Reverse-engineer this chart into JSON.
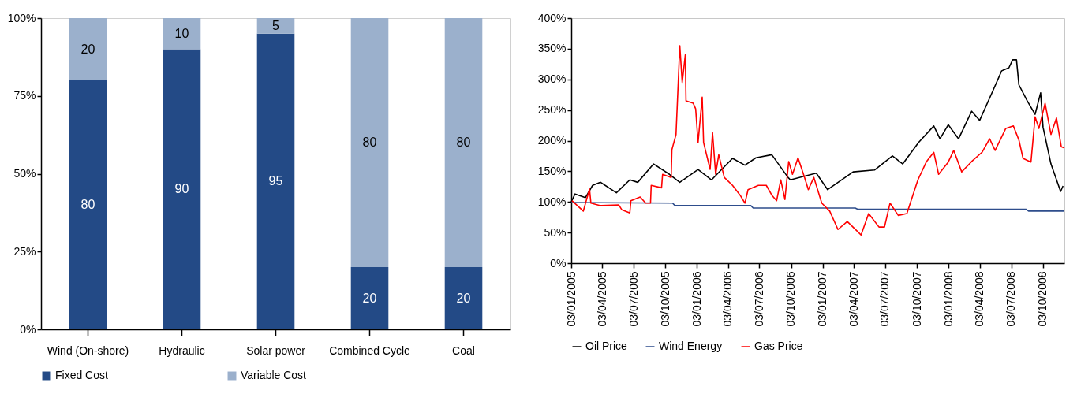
{
  "chart_data": [
    {
      "type": "bar",
      "stacked": true,
      "categories": [
        "Wind (On-shore)",
        "Hydraulic",
        "Solar power",
        "Combined Cycle",
        "Coal"
      ],
      "series": [
        {
          "name": "Fixed Cost",
          "color": "#234a86",
          "values": [
            80,
            90,
            95,
            20,
            20
          ]
        },
        {
          "name": "Variable Cost",
          "color": "#9bb0cc",
          "values": [
            20,
            10,
            5,
            80,
            80
          ]
        }
      ],
      "ylim": [
        0,
        100
      ],
      "yticks": [
        {
          "value": 0,
          "label": "0%"
        },
        {
          "value": 25,
          "label": "25%"
        },
        {
          "value": 50,
          "label": "50%"
        },
        {
          "value": 75,
          "label": "75%"
        },
        {
          "value": 100,
          "label": "100%"
        }
      ],
      "data_labels": true,
      "legend": "bottom"
    },
    {
      "type": "line",
      "series": [
        {
          "name": "Oil Price",
          "color": "#000000",
          "x": [
            "2005-01-03",
            "2005-01-14",
            "2005-02-13",
            "2005-03-06",
            "2005-03-29",
            "2005-05-14",
            "2005-06-22",
            "2005-07-15",
            "2005-08-30",
            "2005-10-15",
            "2005-11-14",
            "2006-01-06",
            "2006-02-14",
            "2006-04-16",
            "2006-05-22",
            "2006-06-23",
            "2006-08-08",
            "2006-09-24",
            "2006-10-01",
            "2006-12-15",
            "2007-01-17",
            "2007-04-01",
            "2007-06-02",
            "2007-07-24",
            "2007-08-23",
            "2007-10-08",
            "2007-11-21",
            "2007-12-09",
            "2008-01-02",
            "2008-02-01",
            "2008-03-10",
            "2008-04-02",
            "2008-05-11",
            "2008-06-05",
            "2008-06-26",
            "2008-07-07",
            "2008-07-18",
            "2008-07-25",
            "2008-08-18",
            "2008-09-10",
            "2008-09-26",
            "2008-10-03",
            "2008-10-26",
            "2008-11-23",
            "2008-11-30"
          ],
          "values": [
            100,
            113,
            107,
            127,
            132,
            115,
            136,
            132,
            162,
            145,
            132,
            153,
            136,
            171,
            160,
            172,
            177,
            140,
            136,
            147,
            120,
            149,
            152,
            175,
            162,
            197,
            224,
            203,
            226,
            203,
            248,
            233,
            282,
            314,
            319,
            332,
            332,
            291,
            265,
            243,
            278,
            222,
            162,
            117,
            126
          ]
        },
        {
          "name": "Wind Energy",
          "color": "#2e4d8c",
          "x": [
            "2005-01-03",
            "2005-10-24",
            "2005-10-31",
            "2006-06-08",
            "2006-06-15",
            "2007-04-07",
            "2007-04-14",
            "2008-08-15",
            "2008-08-22",
            "2008-12-04"
          ],
          "values": [
            99,
            98,
            94,
            94,
            90,
            90,
            88,
            88,
            85,
            85
          ]
        },
        {
          "name": "Gas Price",
          "color": "#ff0000",
          "x": [
            "2005-01-05",
            "2005-02-07",
            "2005-02-25",
            "2005-03-01",
            "2005-03-29",
            "2005-05-21",
            "2005-05-30",
            "2005-06-22",
            "2005-06-25",
            "2005-07-22",
            "2005-08-07",
            "2005-08-21",
            "2005-08-23",
            "2005-09-22",
            "2005-09-25",
            "2005-10-20",
            "2005-10-22",
            "2005-11-03",
            "2005-11-14",
            "2005-11-21",
            "2005-11-30",
            "2005-12-02",
            "2005-12-23",
            "2005-12-30",
            "2006-01-06",
            "2006-01-18",
            "2006-01-22",
            "2006-02-10",
            "2006-02-17",
            "2006-02-26",
            "2006-03-07",
            "2006-03-23",
            "2006-04-16",
            "2006-05-08",
            "2006-05-22",
            "2006-05-31",
            "2006-06-30",
            "2006-07-23",
            "2006-08-08",
            "2006-08-22",
            "2006-09-03",
            "2006-09-15",
            "2006-09-26",
            "2006-10-07",
            "2006-10-23",
            "2006-11-11",
            "2006-11-22",
            "2006-12-08",
            "2006-12-31",
            "2007-01-23",
            "2007-02-16",
            "2007-03-15",
            "2007-04-17",
            "2007-04-24",
            "2007-05-16",
            "2007-06-15",
            "2007-07-01",
            "2007-07-17",
            "2007-08-10",
            "2007-09-04",
            "2007-09-16",
            "2007-10-06",
            "2007-10-31",
            "2007-11-21",
            "2007-12-05",
            "2008-01-02",
            "2008-01-18",
            "2008-02-10",
            "2008-03-10",
            "2008-04-09",
            "2008-05-01",
            "2008-05-17",
            "2008-06-17",
            "2008-07-09",
            "2008-07-25",
            "2008-08-06",
            "2008-08-29",
            "2008-09-10",
            "2008-09-21",
            "2008-10-09",
            "2008-10-26",
            "2008-11-11",
            "2008-11-25",
            "2008-12-04"
          ],
          "values": [
            102,
            85,
            121,
            98,
            94,
            95,
            87,
            82,
            102,
            108,
            98,
            98,
            127,
            123,
            145,
            140,
            185,
            210,
            355,
            295,
            340,
            265,
            261,
            252,
            197,
            271,
            197,
            153,
            213,
            145,
            177,
            140,
            127,
            111,
            98,
            120,
            127,
            127,
            111,
            102,
            136,
            104,
            166,
            145,
            172,
            140,
            120,
            140,
            98,
            85,
            55,
            68,
            50,
            46,
            81,
            59,
            59,
            98,
            78,
            81,
            102,
            136,
            166,
            181,
            145,
            165,
            184,
            149,
            166,
            181,
            203,
            184,
            220,
            224,
            201,
            171,
            165,
            239,
            220,
            261,
            210,
            237,
            190,
            188
          ]
        }
      ],
      "xlim": [
        "2005-01-03",
        "2008-12-04"
      ],
      "xticks": [
        {
          "value": "2005-01-03",
          "label": "03/01/2005"
        },
        {
          "value": "2005-04-03",
          "label": "03/04/2005"
        },
        {
          "value": "2005-07-03",
          "label": "03/07/2005"
        },
        {
          "value": "2005-10-03",
          "label": "03/10/2005"
        },
        {
          "value": "2006-01-03",
          "label": "03/01/2006"
        },
        {
          "value": "2006-04-03",
          "label": "03/04/2006"
        },
        {
          "value": "2006-07-03",
          "label": "03/07/2006"
        },
        {
          "value": "2006-10-03",
          "label": "03/10/2006"
        },
        {
          "value": "2007-01-03",
          "label": "03/01/2007"
        },
        {
          "value": "2007-04-03",
          "label": "03/04/2007"
        },
        {
          "value": "2007-07-03",
          "label": "03/07/2007"
        },
        {
          "value": "2007-10-03",
          "label": "03/10/2007"
        },
        {
          "value": "2008-01-03",
          "label": "03/01/2008"
        },
        {
          "value": "2008-04-03",
          "label": "03/04/2008"
        },
        {
          "value": "2008-07-03",
          "label": "03/07/2008"
        },
        {
          "value": "2008-10-03",
          "label": "03/10/2008"
        }
      ],
      "ylim": [
        0,
        400
      ],
      "yticks": [
        {
          "value": 0,
          "label": "0%"
        },
        {
          "value": 50,
          "label": "50%"
        },
        {
          "value": 100,
          "label": "100%"
        },
        {
          "value": 150,
          "label": "150%"
        },
        {
          "value": 200,
          "label": "200%"
        },
        {
          "value": 250,
          "label": "250%"
        },
        {
          "value": 300,
          "label": "300%"
        },
        {
          "value": 350,
          "label": "350%"
        },
        {
          "value": 400,
          "label": "400%"
        }
      ],
      "legend": "bottom"
    }
  ]
}
